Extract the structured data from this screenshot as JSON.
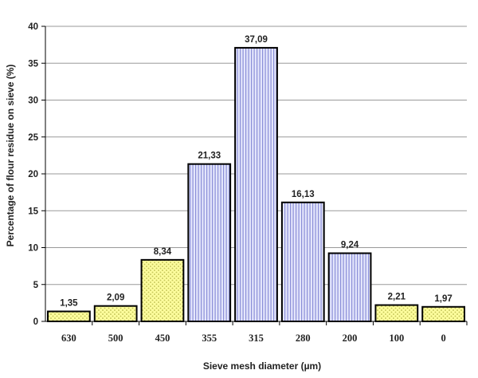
{
  "chart_data": {
    "type": "bar",
    "title": "",
    "xlabel": "Sieve mesh diameter (µm)",
    "ylabel": "Percentage of flour residue on sieve (%)",
    "ylim": [
      0,
      40
    ],
    "yticks": [
      0,
      5,
      10,
      15,
      20,
      25,
      30,
      35,
      40
    ],
    "grid": true,
    "categories": [
      "630",
      "500",
      "450",
      "355",
      "315",
      "280",
      "200",
      "100",
      "0"
    ],
    "values": [
      1.35,
      2.09,
      8.34,
      21.33,
      37.09,
      16.13,
      9.24,
      2.21,
      1.97
    ],
    "value_labels": [
      "1,35",
      "2,09",
      "8,34",
      "21,33",
      "37,09",
      "16,13",
      "9,24",
      "2,21",
      "1,97"
    ],
    "bar_fills": [
      "yellow-dotted",
      "yellow-dotted",
      "yellow-dotted",
      "blue-striped",
      "blue-striped",
      "blue-striped",
      "blue-striped",
      "yellow-dotted",
      "yellow-dotted"
    ],
    "colors": {
      "yellow_fill": "#ffff9e",
      "yellow_dots": "#c8c860",
      "blue_fill": "#e4e6fb",
      "blue_stripes": "#8a8ed8",
      "grid": "#9a9a9a",
      "outline": "#000000"
    }
  }
}
